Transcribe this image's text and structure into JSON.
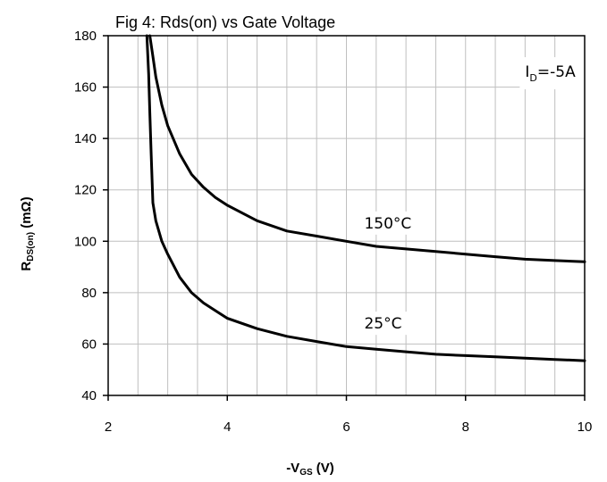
{
  "chart_data": {
    "type": "line",
    "title": "Fig 4: Rds(on) vs Gate Voltage",
    "xlabel": {
      "prefix": "-V",
      "sub": "GS",
      "suffix": " (V)"
    },
    "ylabel": {
      "prefix": "R",
      "sub": "DS(on)",
      "suffix": " (mΩ)"
    },
    "xlim": [
      2,
      10
    ],
    "ylim": [
      40,
      180
    ],
    "xticks": [
      2,
      4,
      6,
      8,
      10
    ],
    "yticks": [
      40,
      60,
      80,
      100,
      120,
      140,
      160,
      180
    ],
    "x_grid": [
      2,
      2.5,
      3,
      3.5,
      4,
      4.5,
      5,
      5.5,
      6,
      6.5,
      7,
      7.5,
      8,
      8.5,
      9,
      9.5,
      10
    ],
    "y_grid": [
      40,
      60,
      80,
      100,
      120,
      140,
      160,
      180
    ],
    "grid": true,
    "annotation": {
      "prefix": "I",
      "sub": "D",
      "suffix": "=-5A"
    },
    "series": [
      {
        "name": "150°C",
        "x": [
          2.7,
          2.75,
          2.8,
          2.9,
          3.0,
          3.2,
          3.4,
          3.6,
          3.8,
          4.0,
          4.5,
          5.0,
          5.5,
          6.0,
          6.5,
          7.0,
          7.5,
          8.0,
          8.5,
          9.0,
          9.5,
          10.0
        ],
        "y": [
          180,
          172,
          164,
          153,
          145,
          134,
          126,
          121,
          117,
          114,
          108,
          104,
          102,
          100,
          98,
          97,
          96,
          95,
          94,
          93,
          92.5,
          92
        ]
      },
      {
        "name": "25°C",
        "x": [
          2.65,
          2.68,
          2.7,
          2.72,
          2.75,
          2.8,
          2.9,
          3.0,
          3.2,
          3.4,
          3.6,
          3.8,
          4.0,
          4.5,
          5.0,
          5.5,
          6.0,
          6.5,
          7.0,
          7.5,
          8.0,
          8.5,
          9.0,
          9.5,
          10.0
        ],
        "y": [
          180,
          165,
          150,
          135,
          115,
          108,
          100,
          95,
          86,
          80,
          76,
          73,
          70,
          66,
          63,
          61,
          59,
          58,
          57,
          56,
          55.5,
          55,
          54.5,
          54,
          53.5
        ]
      }
    ],
    "series_labels": [
      {
        "series": "150°C",
        "x": 6.3,
        "y": 105
      },
      {
        "series": "25°C",
        "x": 6.3,
        "y": 66
      }
    ],
    "annotation_pos": {
      "x": 9.0,
      "y": 164
    }
  }
}
